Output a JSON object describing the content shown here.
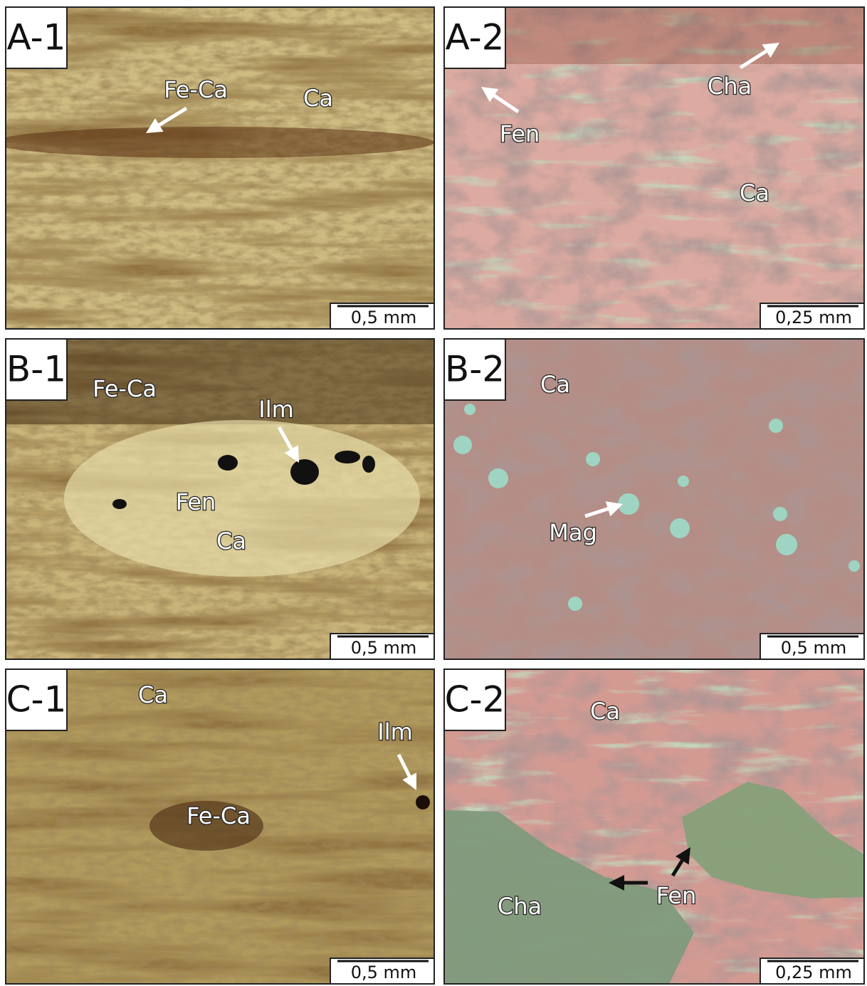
{
  "panels": [
    {
      "label": "A-1",
      "annotations": [
        "Fe-Ca",
        "Ca"
      ],
      "scale_bar": "0,5 mm"
    },
    {
      "label": "A-2",
      "annotations": [
        "Cha",
        "Fen",
        "Ca"
      ],
      "scale_bar": "0,25 mm"
    },
    {
      "label": "B-1",
      "annotations": [
        "Fe-Ca",
        "Ilm",
        "Fen",
        "Ca"
      ],
      "scale_bar": "0,5 mm"
    },
    {
      "label": "B-2",
      "annotations": [
        "Ca",
        "Mag"
      ],
      "scale_bar": "0,5 mm"
    },
    {
      "label": "C-1",
      "annotations": [
        "Ca",
        "Ilm",
        "Fe-Ca"
      ],
      "scale_bar": "0,5 mm"
    },
    {
      "label": "C-2",
      "annotations": [
        "Ca",
        "Cha",
        "Fen"
      ],
      "scale_bar": "0,25 mm"
    }
  ]
}
